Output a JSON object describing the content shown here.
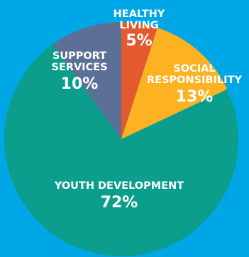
{
  "colors": {
    "background": "#00a7e7",
    "label_text": "#ffffff"
  },
  "chart_data": {
    "type": "pie",
    "title": "",
    "start_angle_deg": 0,
    "direction": "clockwise",
    "slices": [
      {
        "label_lines": [
          "HEALTHY",
          "LIVING"
        ],
        "value": 5,
        "value_label": "5%",
        "color": "#e35a2e"
      },
      {
        "label_lines": [
          "SOCIAL",
          "RESPONSIBILITY"
        ],
        "value": 13,
        "value_label": "13%",
        "color": "#fdb222"
      },
      {
        "label_lines": [
          "YOUTH DEVELOPMENT"
        ],
        "value": 72,
        "value_label": "72%",
        "color": "#0b9e8d"
      },
      {
        "label_lines": [
          "SUPPORT",
          "SERVICES"
        ],
        "value": 10,
        "value_label": "10%",
        "color": "#5c7097"
      }
    ]
  }
}
